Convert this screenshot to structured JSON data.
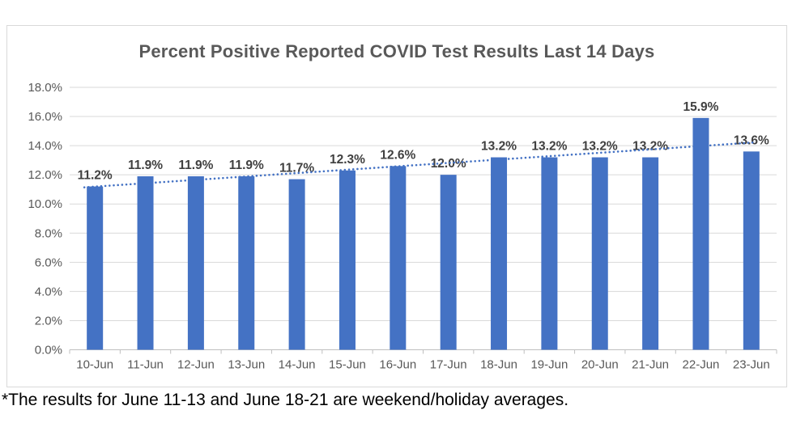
{
  "footnote": "*The results for June 11-13 and June 18-21 are weekend/holiday averages.",
  "chart_data": {
    "type": "bar",
    "title": "Percent Positive Reported COVID Test Results Last 14 Days",
    "categories": [
      "10-Jun",
      "11-Jun",
      "12-Jun",
      "13-Jun",
      "14-Jun",
      "15-Jun",
      "16-Jun",
      "17-Jun",
      "18-Jun",
      "19-Jun",
      "20-Jun",
      "21-Jun",
      "22-Jun",
      "23-Jun"
    ],
    "values": [
      11.2,
      11.9,
      11.9,
      11.9,
      11.7,
      12.3,
      12.6,
      12.0,
      13.2,
      13.2,
      13.2,
      13.2,
      15.9,
      13.6
    ],
    "data_labels": [
      "11.2%",
      "11.9%",
      "11.9%",
      "11.9%",
      "11.7%",
      "12.3%",
      "12.6%",
      "12.0%",
      "13.2%",
      "13.2%",
      "13.2%",
      "13.2%",
      "15.9%",
      "13.6%"
    ],
    "xlabel": "",
    "ylabel": "",
    "ylim": [
      0,
      18
    ],
    "y_tick_step": 2,
    "y_tick_labels": [
      "0.0%",
      "2.0%",
      "4.0%",
      "6.0%",
      "8.0%",
      "10.0%",
      "12.0%",
      "14.0%",
      "16.0%",
      "18.0%"
    ],
    "grid": true,
    "legend": "none",
    "trendline": {
      "type": "linear",
      "style": "dotted"
    },
    "colors": {
      "bar": "#4472C4",
      "trendline": "#4472C4",
      "gridline": "#D9D9D9",
      "axis_line": "#BFBFBF",
      "axis_text": "#595959",
      "data_label": "#404040",
      "title": "#595959",
      "frame_border": "#D9D9D9",
      "footnote_text": "#000000"
    }
  }
}
